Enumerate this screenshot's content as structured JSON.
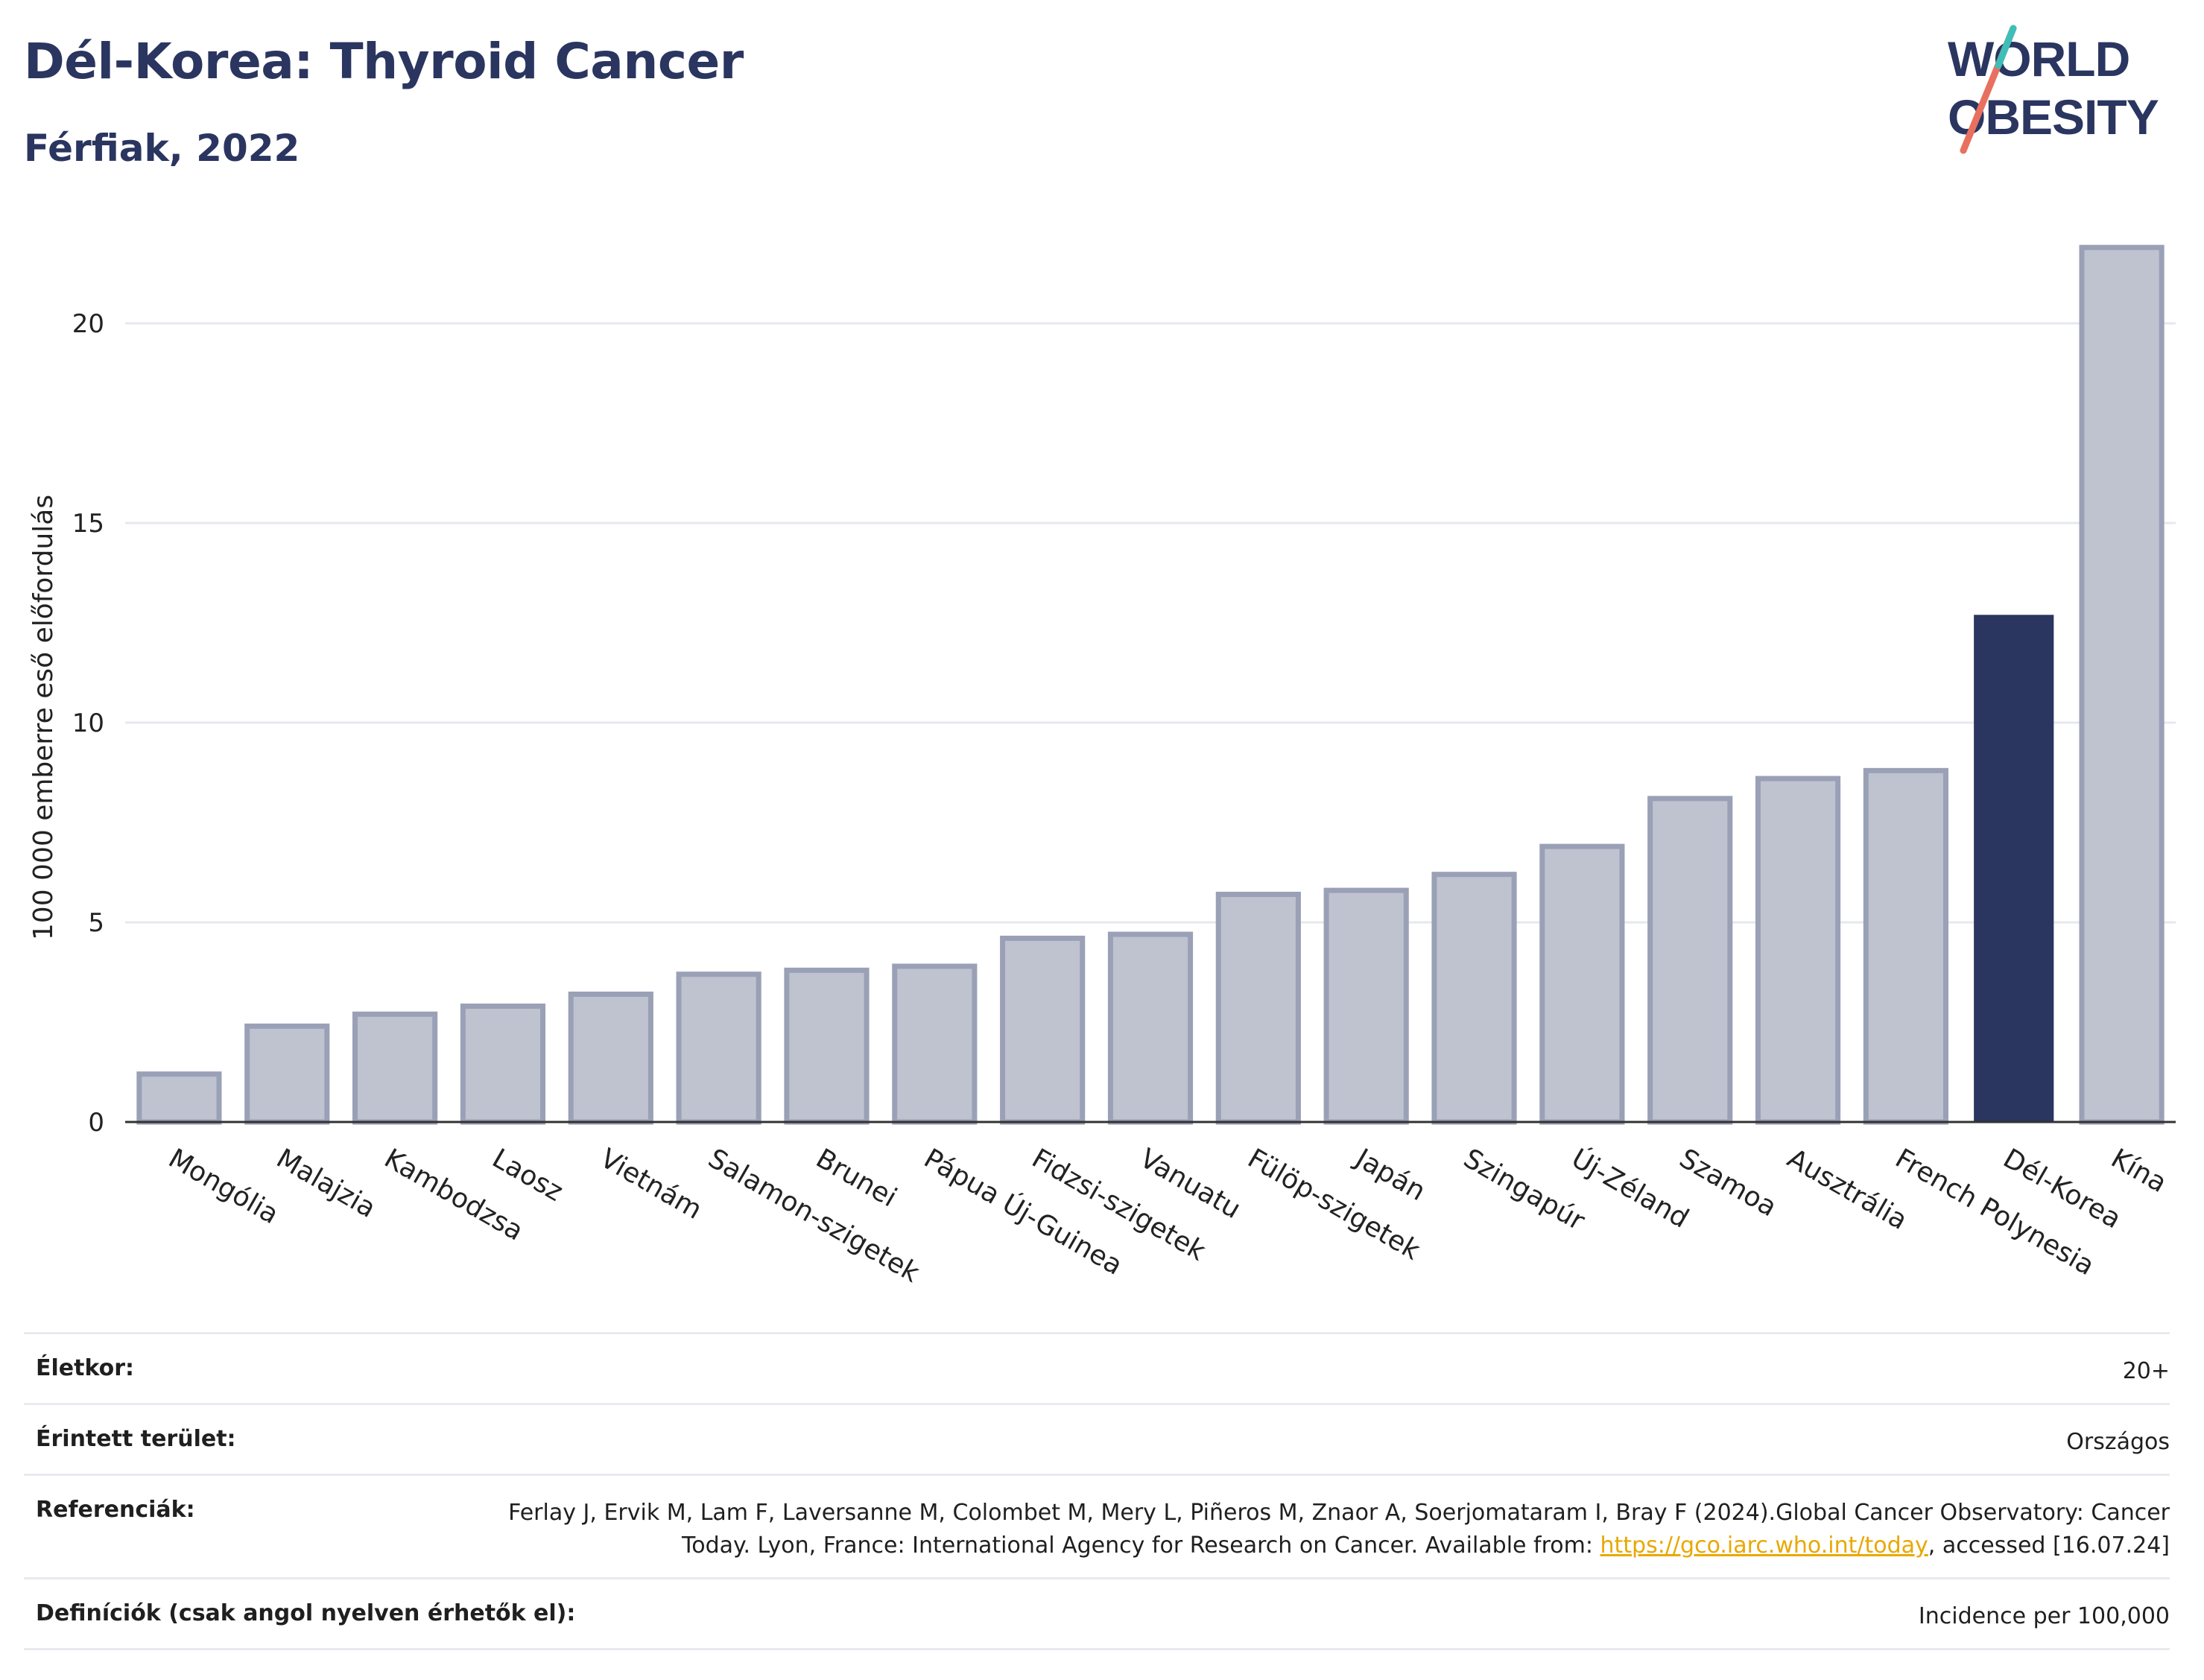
{
  "header": {
    "title": "Dél-Korea: Thyroid Cancer",
    "subtitle": "Férfiak, 2022"
  },
  "logo": {
    "line1": "WORLD",
    "line2": "OBESITY"
  },
  "colors": {
    "highlight": "#2a3560",
    "bar": "#bfc3d0",
    "bar_edge": "#9aa0b6",
    "title": "#2a3560",
    "link": "#e9a800",
    "logo_teal": "#3dbfb8",
    "logo_coral": "#e8705f"
  },
  "chart_data": {
    "type": "bar",
    "ylabel": "100 000 emberre eső előfordulás",
    "xlabel": "",
    "ylim": [
      0,
      22.5
    ],
    "yticks": [
      0,
      5,
      10,
      15,
      20
    ],
    "grid": true,
    "highlight": "Dél-Korea",
    "categories": [
      "Mongólia",
      "Malajzia",
      "Kambodzsa",
      "Laosz",
      "Vietnám",
      "Salamon-szigetek",
      "Brunei",
      "Pápua Új-Guinea",
      "Fidzsi-szigetek",
      "Vanuatu",
      "Fülöp-szigetek",
      "Japán",
      "Szingapúr",
      "Új-Zéland",
      "Szamoa",
      "Ausztrália",
      "French Polynesia",
      "Dél-Korea",
      "Kína"
    ],
    "values": [
      1.2,
      2.4,
      2.7,
      2.9,
      3.2,
      3.7,
      3.8,
      3.9,
      4.6,
      4.7,
      5.7,
      5.8,
      6.2,
      6.9,
      8.1,
      8.6,
      8.8,
      12.7,
      21.9
    ]
  },
  "info": {
    "age_label": "Életkor:",
    "age_value": "20+",
    "area_label": "Érintett terület:",
    "area_value": "Országos",
    "ref_label": "Referenciák:",
    "ref_text1": "Ferlay J, Ervik M, Lam F, Laversanne M, Colombet M, Mery L, Piñeros M, Znaor A, Soerjomataram I, Bray F (2024).Global Cancer Observatory: Cancer Today. Lyon, France: International Agency for Research on Cancer. Available from: ",
    "ref_link": "https://gco.iarc.who.int/today",
    "ref_text2": ", accessed [16.07.24]",
    "def_label": "Definíciók (csak angol nyelven érhetők el):",
    "def_value": "Incidence per 100,000"
  }
}
